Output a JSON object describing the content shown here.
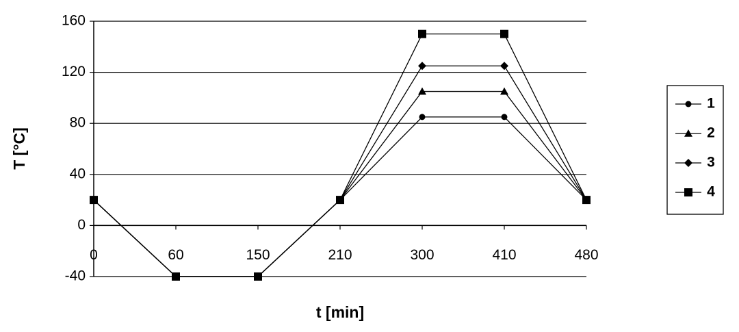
{
  "chart_data": {
    "type": "line",
    "x_label": "t [min]",
    "y_label": "T [°C]",
    "categories": [
      "0",
      "60",
      "150",
      "210",
      "300",
      "410",
      "480"
    ],
    "ylim": [
      -40,
      160
    ],
    "yticks": [
      -40,
      0,
      40,
      80,
      120,
      160
    ],
    "grid": true,
    "legend": "right",
    "series": [
      {
        "name": "1",
        "color": "#000000",
        "marker": "circle",
        "values": [
          20,
          -40,
          -40,
          20,
          85,
          85,
          20
        ]
      },
      {
        "name": "2",
        "color": "#000000",
        "marker": "triangle",
        "values": [
          20,
          -40,
          -40,
          20,
          105,
          105,
          20
        ]
      },
      {
        "name": "3",
        "color": "#000000",
        "marker": "diamond",
        "values": [
          20,
          -40,
          -40,
          20,
          125,
          125,
          20
        ]
      },
      {
        "name": "4",
        "color": "#000000",
        "marker": "square",
        "values": [
          20,
          -40,
          -40,
          20,
          150,
          150,
          20
        ]
      }
    ]
  }
}
